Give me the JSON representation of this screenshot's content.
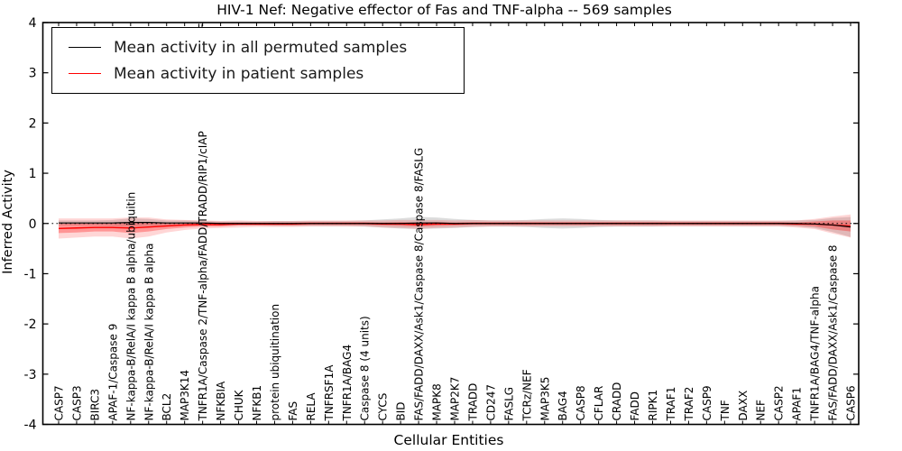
{
  "chart_data": {
    "type": "line",
    "title": "HIV-1 Nef: Negative effector of Fas and TNF-alpha -- 569 samples",
    "xlabel": "Cellular Entities",
    "ylabel": "Inferred Activity",
    "ylim": [
      -4,
      4
    ],
    "yticks": [
      -4,
      -3,
      -2,
      -1,
      0,
      1,
      2,
      3,
      4
    ],
    "grid": false,
    "legend_position": "upper left",
    "zero_line": 0,
    "categories": [
      "CASP7",
      "CASP3",
      "BIRC3",
      "APAF-1/Caspase 9",
      "NF-kappa-B/RelA/I kappa B alpha/ubiquitin",
      "NF-kappa-B/RelA/I kappa B alpha",
      "BCL2",
      "MAP3K14",
      "TNFR1A/Caspase 2/TNF-alpha/FADD/TRADD/RIP1/cIAP",
      "NFKBIA",
      "CHUK",
      "NFKB1",
      "protein ubiquitination",
      "FAS",
      "RELA",
      "TNFRSF1A",
      "TNFR1A/BAG4",
      "Caspase 8 (4 units)",
      "CYCS",
      "BID",
      "FAS/FADD/DAXX/Ask1/Caspase 8/Caspase 8/FASLG",
      "MAPK8",
      "MAP2K7",
      "TRADD",
      "CD247",
      "FASLG",
      "TCRz/NEF",
      "MAP3K5",
      "BAG4",
      "CASP8",
      "CFLAR",
      "CRADD",
      "FADD",
      "RIPK1",
      "TRAF1",
      "TRAF2",
      "CASP9",
      "TNF",
      "DAXX",
      "NEF",
      "CASP2",
      "APAF1",
      "TNFR1A/BAG4/TNF-alpha",
      "FAS/FADD/DAXX/Ask1/Caspase 8",
      "CASP6"
    ],
    "clipped_label_index": 8,
    "clipped_label_top_fragment": "TRAF",
    "series": [
      {
        "name": "Mean activity in all permuted samples",
        "color": "#000000",
        "band_color": "rgba(130,130,130,0.28)",
        "values": [
          0.01,
          0.01,
          0.01,
          0.01,
          0.02,
          0.02,
          0.01,
          0.01,
          0.01,
          0,
          0,
          0,
          0,
          0,
          0,
          0,
          0,
          0,
          0,
          0,
          0.01,
          0.01,
          0,
          0,
          0,
          0,
          0,
          0,
          0,
          0,
          0,
          0,
          0,
          0,
          0,
          0,
          0,
          0,
          0,
          0,
          0,
          0,
          -0.01,
          -0.03,
          -0.07
        ],
        "std": [
          0.05,
          0.05,
          0.05,
          0.06,
          0.08,
          0.07,
          0.05,
          0.05,
          0.04,
          0.04,
          0.04,
          0.04,
          0.05,
          0.05,
          0.05,
          0.05,
          0.05,
          0.06,
          0.08,
          0.1,
          0.12,
          0.11,
          0.09,
          0.07,
          0.06,
          0.06,
          0.07,
          0.09,
          0.1,
          0.09,
          0.07,
          0.06,
          0.06,
          0.06,
          0.05,
          0.05,
          0.05,
          0.05,
          0.05,
          0.05,
          0.05,
          0.06,
          0.08,
          0.14,
          0.2
        ]
      },
      {
        "name": "Mean activity in patient samples",
        "color": "#ff0000",
        "band_color_outer": "rgba(255,0,0,0.16)",
        "band_color_inner": "rgba(255,0,0,0.30)",
        "values": [
          -0.1,
          -0.09,
          -0.08,
          -0.08,
          -0.09,
          -0.07,
          -0.05,
          -0.03,
          -0.02,
          -0.02,
          -0.01,
          -0.01,
          -0.01,
          -0.01,
          0,
          0,
          0,
          0,
          -0.01,
          -0.01,
          -0.02,
          -0.01,
          -0.01,
          0,
          0,
          0,
          0,
          0,
          0,
          0,
          0,
          0,
          0,
          0,
          0,
          0,
          0,
          0,
          0,
          0,
          0,
          -0.01,
          -0.01,
          -0.03,
          -0.05
        ],
        "std_outer": [
          0.2,
          0.19,
          0.18,
          0.18,
          0.21,
          0.19,
          0.13,
          0.1,
          0.08,
          0.07,
          0.07,
          0.06,
          0.06,
          0.06,
          0.06,
          0.06,
          0.06,
          0.06,
          0.07,
          0.08,
          0.09,
          0.08,
          0.07,
          0.07,
          0.06,
          0.06,
          0.06,
          0.06,
          0.06,
          0.06,
          0.06,
          0.06,
          0.06,
          0.06,
          0.06,
          0.06,
          0.06,
          0.06,
          0.06,
          0.06,
          0.06,
          0.07,
          0.1,
          0.17,
          0.23
        ],
        "std_inner": [
          0.09,
          0.09,
          0.08,
          0.08,
          0.1,
          0.09,
          0.06,
          0.05,
          0.04,
          0.04,
          0.03,
          0.03,
          0.03,
          0.03,
          0.03,
          0.03,
          0.03,
          0.03,
          0.03,
          0.04,
          0.04,
          0.04,
          0.03,
          0.03,
          0.03,
          0.03,
          0.03,
          0.03,
          0.03,
          0.03,
          0.03,
          0.03,
          0.03,
          0.03,
          0.03,
          0.03,
          0.03,
          0.03,
          0.03,
          0.03,
          0.03,
          0.03,
          0.05,
          0.09,
          0.11
        ]
      }
    ]
  },
  "colors": {
    "axis": "#000000",
    "background": "#ffffff",
    "zero_line": "#000000"
  }
}
